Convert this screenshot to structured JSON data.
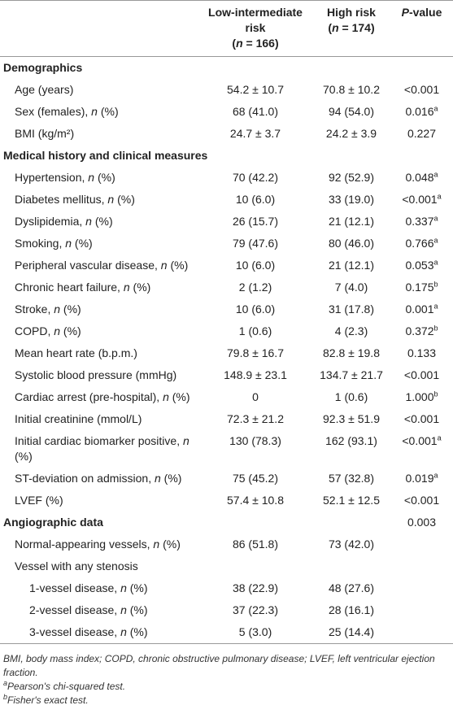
{
  "table": {
    "header": [
      {
        "title": "Low-intermediate risk",
        "n": [
          {
            "t": "("
          },
          {
            "t": "n",
            "i": true
          },
          {
            "t": " = 166)"
          }
        ]
      },
      {
        "title": "High risk",
        "n": [
          {
            "t": "("
          },
          {
            "t": "n",
            "i": true
          },
          {
            "t": " = 174)"
          }
        ]
      },
      {
        "title": [
          {
            "t": "P",
            "i": true
          },
          {
            "t": "-value"
          }
        ]
      }
    ],
    "sections": [
      {
        "title": "Demographics",
        "rows": [
          {
            "label": "Age (years)",
            "low": "54.2 ± 10.7",
            "high": "70.8 ± 10.2",
            "p": "<0.001"
          },
          {
            "label": [
              {
                "t": "Sex (females), "
              },
              {
                "t": "n",
                "i": true
              },
              {
                "t": " (%)"
              }
            ],
            "low": "68 (41.0)",
            "high": "94 (54.0)",
            "p": "0.016",
            "note": "a"
          },
          {
            "label": "BMI (kg/m²)",
            "low": "24.7 ± 3.7",
            "high": "24.2 ± 3.9",
            "p": "0.227"
          }
        ]
      },
      {
        "title": "Medical history and clinical measures",
        "rows": [
          {
            "label": [
              {
                "t": "Hypertension, "
              },
              {
                "t": "n",
                "i": true
              },
              {
                "t": " (%)"
              }
            ],
            "low": "70 (42.2)",
            "high": "92 (52.9)",
            "p": "0.048",
            "note": "a"
          },
          {
            "label": [
              {
                "t": "Diabetes mellitus, "
              },
              {
                "t": "n",
                "i": true
              },
              {
                "t": " (%)"
              }
            ],
            "low": "10 (6.0)",
            "high": "33 (19.0)",
            "p": "<0.001",
            "note": "a"
          },
          {
            "label": [
              {
                "t": "Dyslipidemia, "
              },
              {
                "t": "n",
                "i": true
              },
              {
                "t": " (%)"
              }
            ],
            "low": "26 (15.7)",
            "high": "21 (12.1)",
            "p": "0.337",
            "note": "a"
          },
          {
            "label": [
              {
                "t": "Smoking, "
              },
              {
                "t": "n",
                "i": true
              },
              {
                "t": " (%)"
              }
            ],
            "low": "79 (47.6)",
            "high": "80 (46.0)",
            "p": "0.766",
            "note": "a"
          },
          {
            "label": [
              {
                "t": "Peripheral vascular disease, "
              },
              {
                "t": "n",
                "i": true
              },
              {
                "t": " (%)"
              }
            ],
            "low": "10 (6.0)",
            "high": "21 (12.1)",
            "p": "0.053",
            "note": "a"
          },
          {
            "label": [
              {
                "t": "Chronic heart failure, "
              },
              {
                "t": "n",
                "i": true
              },
              {
                "t": " (%)"
              }
            ],
            "low": "2 (1.2)",
            "high": "7 (4.0)",
            "p": "0.175",
            "note": "b"
          },
          {
            "label": [
              {
                "t": "Stroke, "
              },
              {
                "t": "n",
                "i": true
              },
              {
                "t": " (%)"
              }
            ],
            "low": "10 (6.0)",
            "high": "31 (17.8)",
            "p": "0.001",
            "note": "a"
          },
          {
            "label": [
              {
                "t": "COPD, "
              },
              {
                "t": "n",
                "i": true
              },
              {
                "t": " (%)"
              }
            ],
            "low": "1 (0.6)",
            "high": "4 (2.3)",
            "p": "0.372",
            "note": "b"
          },
          {
            "label": "Mean heart rate (b.p.m.)",
            "low": "79.8 ± 16.7",
            "high": "82.8 ± 19.8",
            "p": "0.133"
          },
          {
            "label": "Systolic blood pressure (mmHg)",
            "low": "148.9 ± 23.1",
            "high": "134.7 ± 21.7",
            "p": "<0.001"
          },
          {
            "label": [
              {
                "t": "Cardiac arrest (pre-hospital), "
              },
              {
                "t": "n",
                "i": true
              },
              {
                "t": " (%)"
              }
            ],
            "low": "0",
            "high": "1 (0.6)",
            "p": "1.000",
            "note": "b"
          },
          {
            "label": "Initial creatinine (mmol/L)",
            "low": "72.3 ± 21.2",
            "high": "92.3 ± 51.9",
            "p": "<0.001"
          },
          {
            "label": [
              {
                "t": "Initial cardiac biomarker positive, "
              },
              {
                "t": "n",
                "i": true
              },
              {
                "t": " (%)"
              }
            ],
            "low": "130 (78.3)",
            "high": "162 (93.1)",
            "p": "<0.001",
            "note": "a"
          },
          {
            "label": [
              {
                "t": "ST-deviation on admission, "
              },
              {
                "t": "n",
                "i": true
              },
              {
                "t": " (%)"
              }
            ],
            "low": "75 (45.2)",
            "high": "57 (32.8)",
            "p": "0.019",
            "note": "a"
          },
          {
            "label": "LVEF (%)",
            "low": "57.4 ± 10.8",
            "high": "52.1 ± 12.5",
            "p": "<0.001"
          }
        ]
      },
      {
        "title": "Angiographic data",
        "p": "0.003",
        "rows": [
          {
            "label": [
              {
                "t": "Normal-appearing vessels, "
              },
              {
                "t": "n",
                "i": true
              },
              {
                "t": " (%)"
              }
            ],
            "low": "86 (51.8)",
            "high": "73 (42.0)"
          },
          {
            "label": "Vessel with any stenosis",
            "subrows": [
              {
                "label": [
                  {
                    "t": "1-vessel disease, "
                  },
                  {
                    "t": "n",
                    "i": true
                  },
                  {
                    "t": " (%)"
                  }
                ],
                "low": "38 (22.9)",
                "high": "48 (27.6)"
              },
              {
                "label": [
                  {
                    "t": "2-vessel disease, "
                  },
                  {
                    "t": "n",
                    "i": true
                  },
                  {
                    "t": " (%)"
                  }
                ],
                "low": "37 (22.3)",
                "high": "28 (16.1)"
              },
              {
                "label": [
                  {
                    "t": "3-vessel disease, "
                  },
                  {
                    "t": "n",
                    "i": true
                  },
                  {
                    "t": " (%)"
                  }
                ],
                "low": "5 (3.0)",
                "high": "25 (14.4)"
              }
            ]
          }
        ]
      }
    ],
    "abbreviations": "BMI, body mass index; COPD, chronic obstructive pulmonary disease; LVEF, left ventricular ejection fraction.",
    "notes": [
      {
        "mark": "a",
        "text": "Pearson's chi-squared test."
      },
      {
        "mark": "b",
        "text": "Fisher's exact test."
      }
    ]
  }
}
